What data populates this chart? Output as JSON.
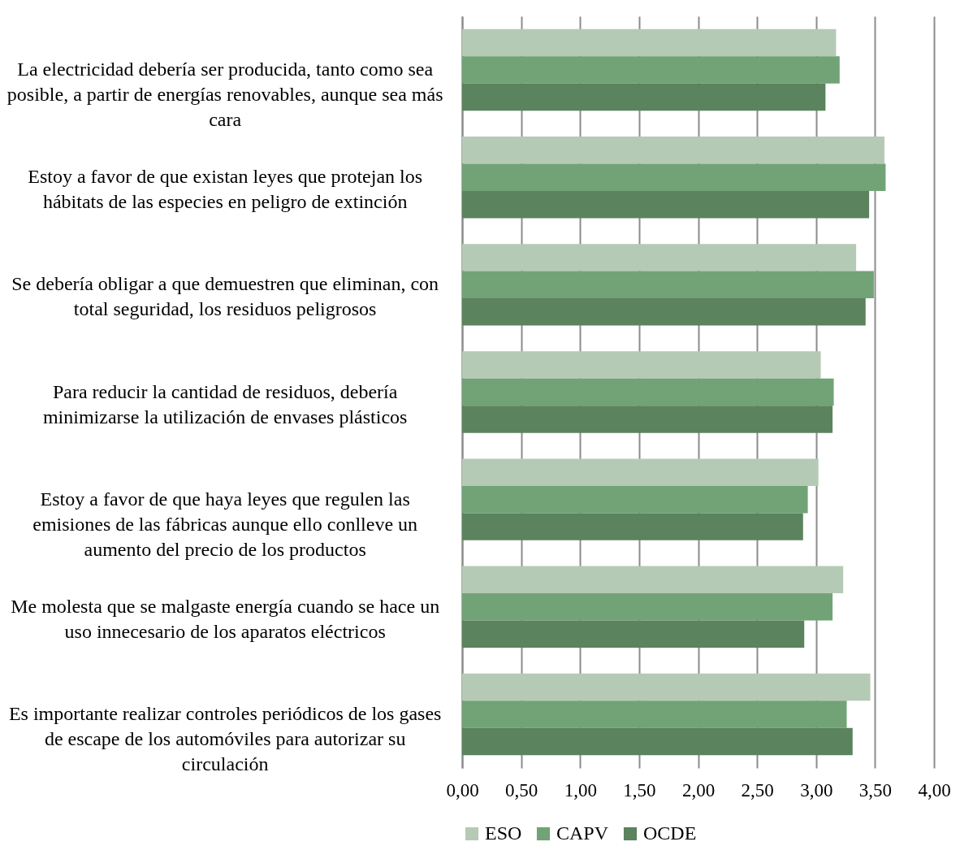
{
  "chart_data": {
    "type": "bar",
    "orientation": "horizontal",
    "categories": [
      "La electricidad debería ser producida, tanto como sea posible, a partir de energías renovables, aunque sea más cara",
      "Estoy a favor de que existan leyes que protejan los hábitats de las especies en peligro de extinción",
      "Se debería obligar a que demuestren que eliminan, con total seguridad, los residuos peligrosos",
      "Para reducir la cantidad de residuos, debería minimizarse la utilización de envases plásticos",
      "Estoy a favor de que haya leyes que regulen las emisiones de las fábricas aunque ello conlleve un aumento del precio de los productos",
      "Me molesta que se malgaste energía cuando se hace un uso innecesario de los aparatos eléctricos",
      "Es importante realizar controles periódicos de los gases de escape de los automóviles para autorizar su circulación"
    ],
    "series": [
      {
        "name": "ESO",
        "color": "#b5cab5",
        "values": [
          3.17,
          3.58,
          3.34,
          3.04,
          3.02,
          3.23,
          3.46
        ]
      },
      {
        "name": "CAPV",
        "color": "#71a376",
        "values": [
          3.2,
          3.59,
          3.49,
          3.15,
          2.93,
          3.14,
          3.26
        ]
      },
      {
        "name": "OCDE",
        "color": "#5b835d",
        "values": [
          3.08,
          3.45,
          3.42,
          3.14,
          2.89,
          2.9,
          3.31
        ]
      }
    ],
    "xlim": [
      0,
      4
    ],
    "xticks": [
      {
        "value": 0,
        "label": "0,00"
      },
      {
        "value": 0.5,
        "label": "0,50"
      },
      {
        "value": 1,
        "label": "1,00"
      },
      {
        "value": 1.5,
        "label": "1,50"
      },
      {
        "value": 2,
        "label": "2,00"
      },
      {
        "value": 2.5,
        "label": "2,50"
      },
      {
        "value": 3,
        "label": "3,00"
      },
      {
        "value": 3.5,
        "label": "3,50"
      },
      {
        "value": 4,
        "label": "4,00"
      }
    ],
    "grid": "x",
    "legend": "bottom"
  }
}
